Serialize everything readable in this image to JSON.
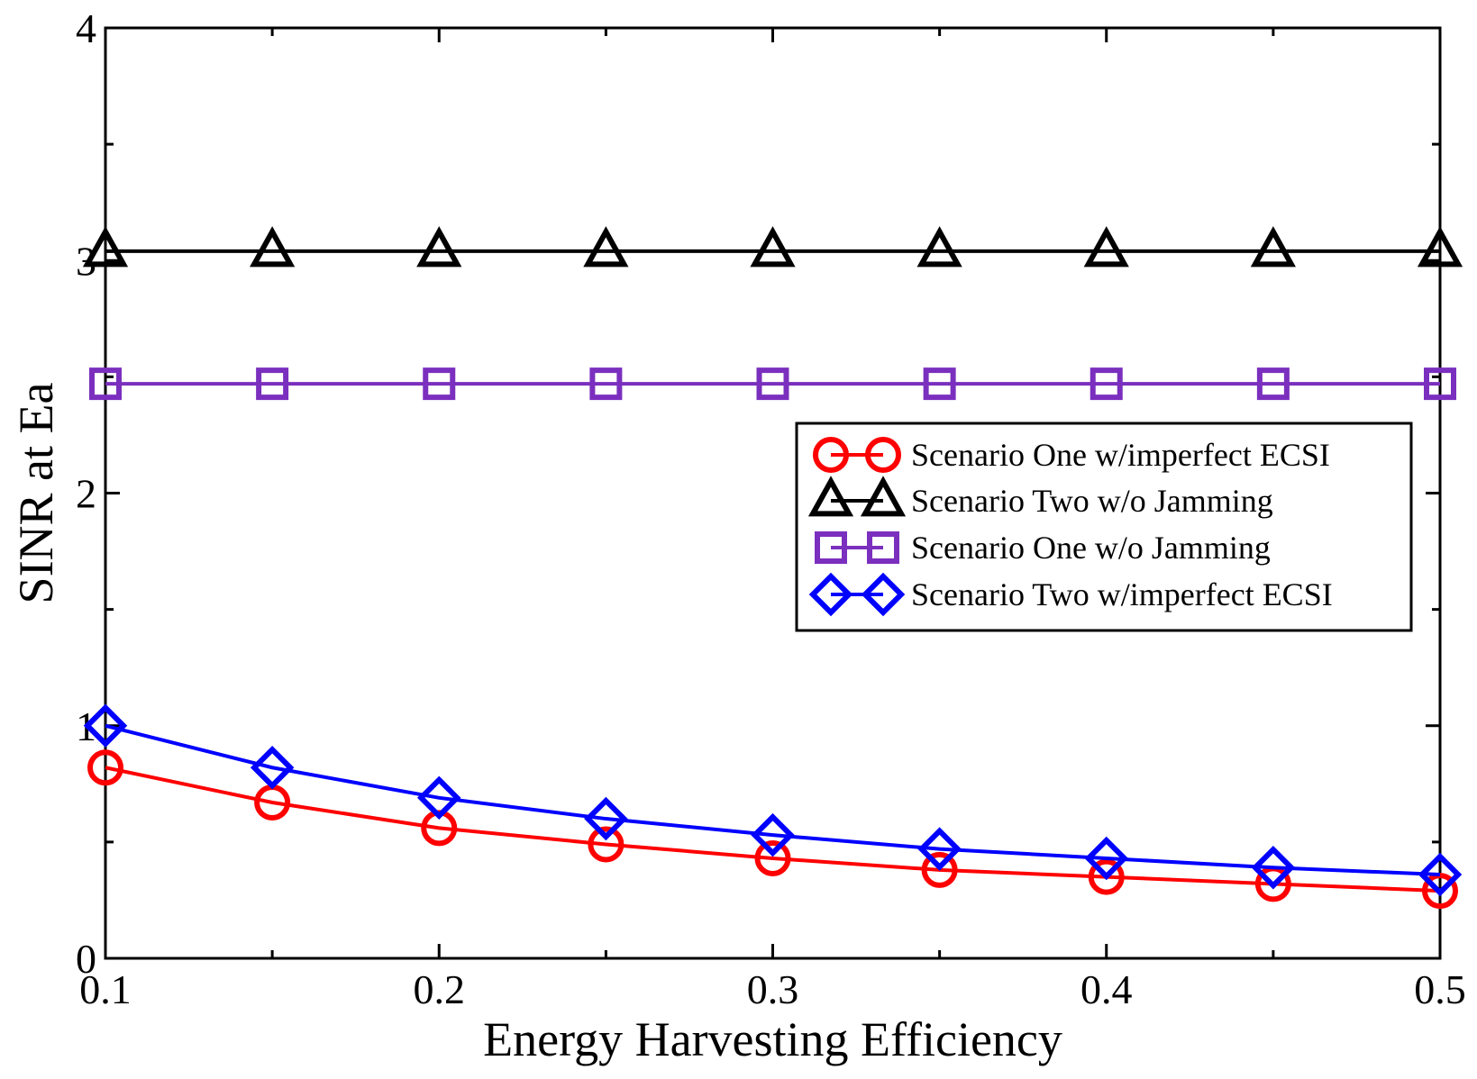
{
  "chart_data": {
    "type": "line",
    "xlabel": "Energy Harvesting Efficiency",
    "ylabel": "SINR at Ea",
    "xlim": [
      0.1,
      0.5
    ],
    "ylim": [
      0,
      4
    ],
    "x_ticks": [
      "0.1",
      "0.2",
      "0.3",
      "0.4",
      "0.5"
    ],
    "y_ticks": [
      "0",
      "1",
      "2",
      "3",
      "4"
    ],
    "grid": false,
    "legend_position": "right, middle",
    "x": [
      0.1,
      0.15,
      0.2,
      0.25,
      0.3,
      0.35,
      0.4,
      0.45,
      0.5
    ],
    "series": [
      {
        "name": "Scenario One w/imperfect ECSI",
        "color": "#ff0000",
        "marker": "circle",
        "values": [
          0.82,
          0.67,
          0.56,
          0.49,
          0.43,
          0.38,
          0.35,
          0.32,
          0.29
        ]
      },
      {
        "name": "Scenario Two w/o Jamming",
        "color": "#000000",
        "marker": "triangle",
        "values": [
          3.04,
          3.04,
          3.04,
          3.04,
          3.04,
          3.04,
          3.04,
          3.04,
          3.04
        ]
      },
      {
        "name": "Scenario One w/o Jamming",
        "color": "#7b2fbe",
        "marker": "square",
        "values": [
          2.47,
          2.47,
          2.47,
          2.47,
          2.47,
          2.47,
          2.47,
          2.47,
          2.47
        ]
      },
      {
        "name": "Scenario Two w/imperfect ECSI",
        "color": "#0000ff",
        "marker": "diamond",
        "values": [
          1.0,
          0.82,
          0.69,
          0.6,
          0.53,
          0.47,
          0.43,
          0.39,
          0.36
        ]
      }
    ]
  }
}
